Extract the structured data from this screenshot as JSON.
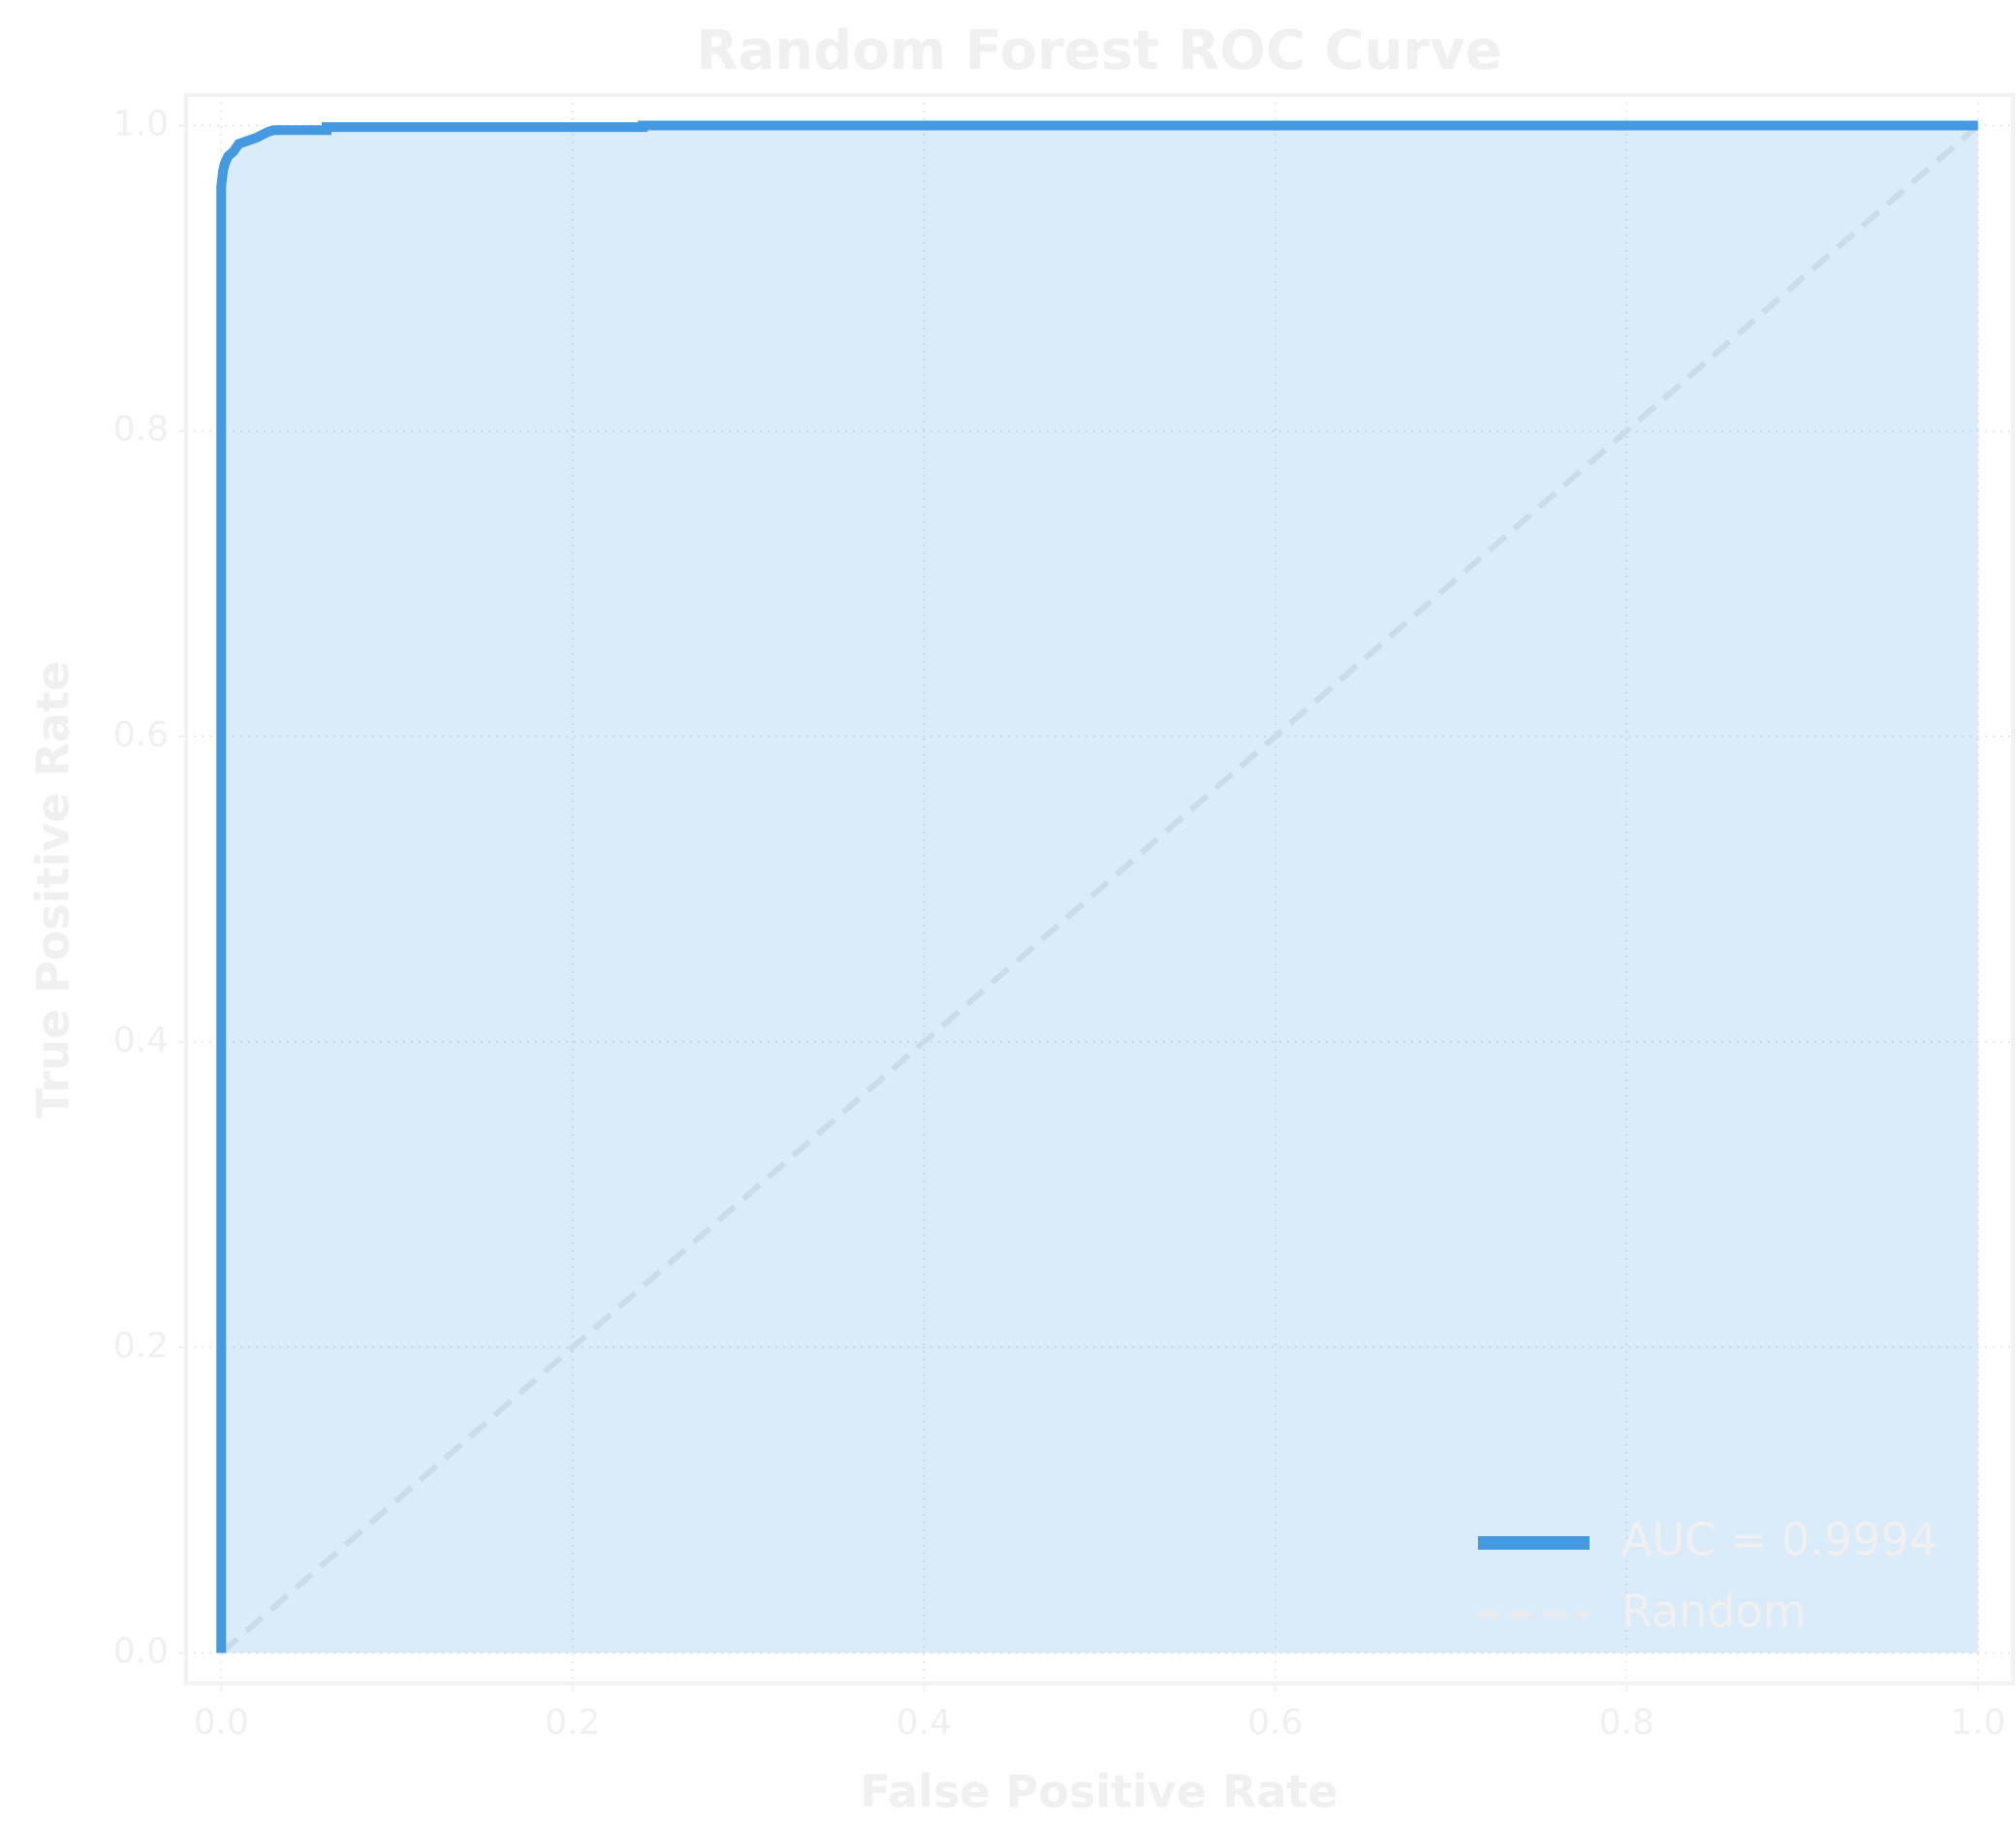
{
  "chart_data": {
    "type": "line",
    "title": "Random Forest ROC Curve",
    "xlabel": "False Positive Rate",
    "ylabel": "True Positive Rate",
    "xlim": [
      -0.02,
      1.02
    ],
    "ylim": [
      -0.02,
      1.02
    ],
    "xticks": [
      {
        "value": 0,
        "label": "0.0"
      },
      0.2,
      0.4,
      0.6,
      0.8,
      {
        "value": 1,
        "label": "1.0"
      }
    ],
    "yticks": [
      {
        "value": 0,
        "label": "0.0"
      },
      0.2,
      0.4,
      0.6,
      0.8,
      {
        "value": 1,
        "label": "1.0"
      }
    ],
    "grid": true,
    "legend": "lower right",
    "series": [
      {
        "name": "AUC = 0.9994",
        "color": "#4499e1",
        "fill": true,
        "x": [
          0,
          0,
          0.001,
          0.002,
          0.004,
          0.007,
          0.01,
          0.015,
          0.02,
          0.027,
          0.03,
          0.06,
          0.06,
          0.24,
          0.24,
          1
        ],
        "values": [
          0,
          0.96,
          0.97,
          0.975,
          0.98,
          0.983,
          0.988,
          0.99,
          0.992,
          0.996,
          0.997,
          0.997,
          0.999,
          0.999,
          1,
          1
        ]
      },
      {
        "name": "Random",
        "color": "#ebebeb",
        "dashed": true,
        "x": [
          0,
          1
        ],
        "values": [
          0,
          1
        ]
      }
    ]
  }
}
